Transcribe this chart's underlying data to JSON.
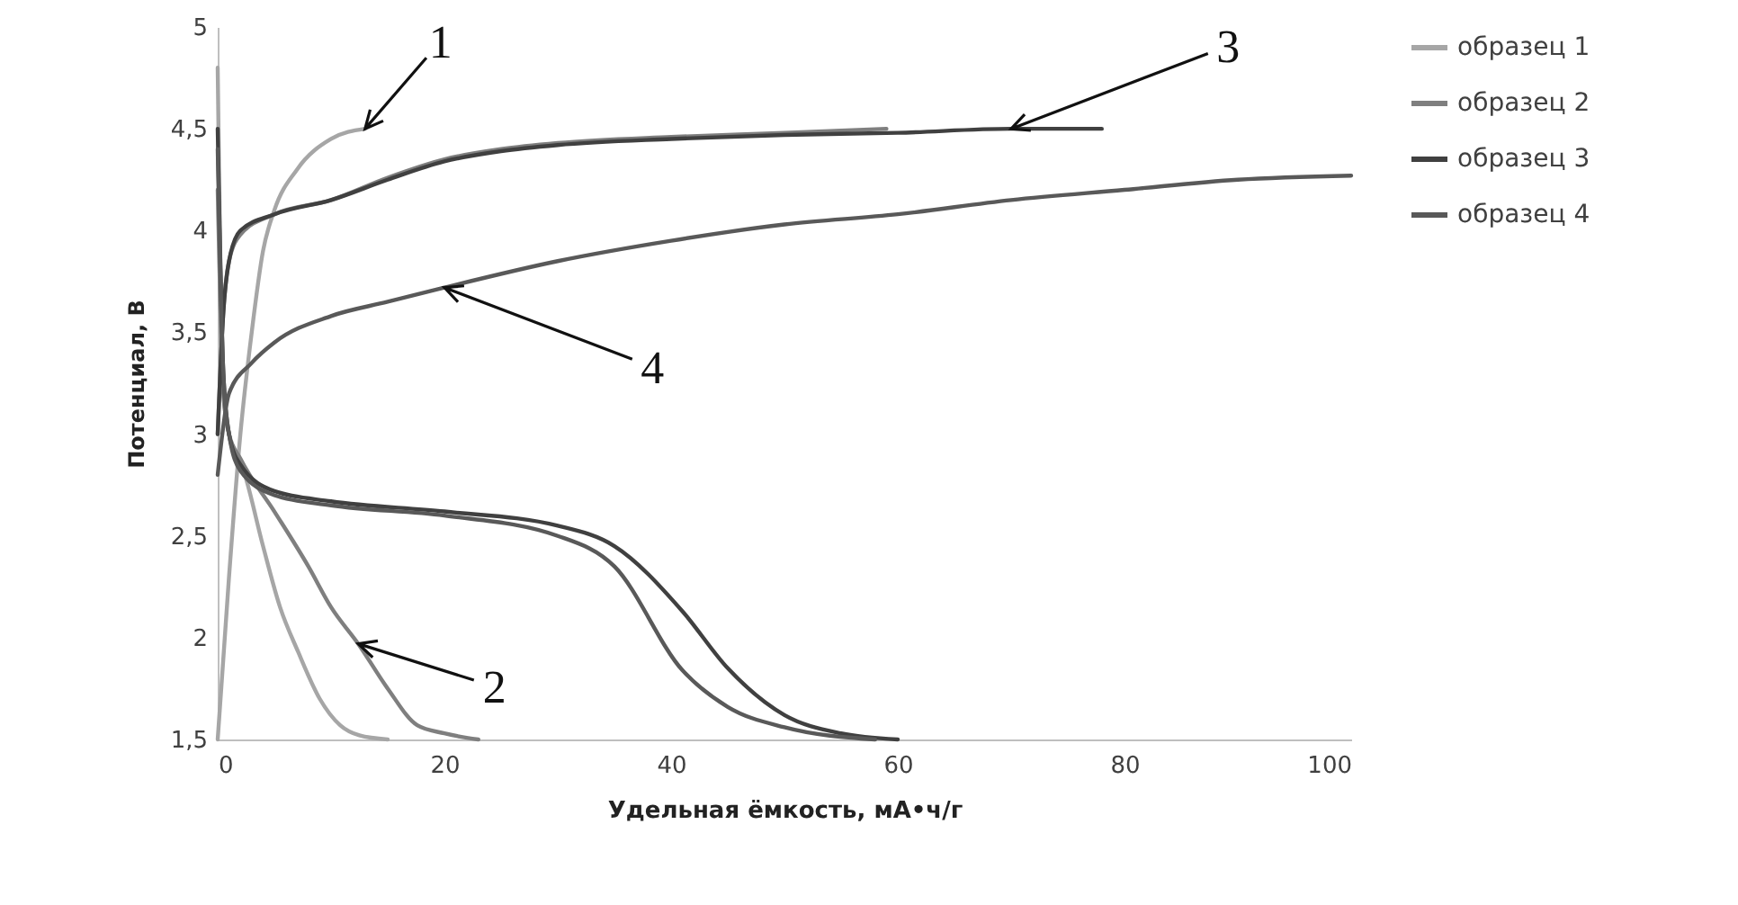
{
  "chart_data": {
    "type": "line",
    "xlabel": "Удельная ёмкость, мА•ч/г",
    "ylabel": "Потенциал, В",
    "xlim": [
      0,
      100
    ],
    "xticks": [
      0,
      20,
      40,
      60,
      80,
      100
    ],
    "ylim": [
      1.5,
      5
    ],
    "yticks": [
      {
        "value": 1.5,
        "label": "1,5"
      },
      {
        "value": 2,
        "label": "2"
      },
      {
        "value": 2.5,
        "label": "2,5"
      },
      {
        "value": 3,
        "label": "3"
      },
      {
        "value": 3.5,
        "label": "3,5"
      },
      {
        "value": 4,
        "label": "4"
      },
      {
        "value": 4.5,
        "label": "4,5"
      },
      {
        "value": 5,
        "label": "5"
      }
    ],
    "grid": false,
    "legend": "right",
    "line_style": "solid",
    "marker": "none",
    "series": [
      {
        "name": "образец 1",
        "color": "#a6a6a6",
        "x": [
          0,
          1,
          2,
          3,
          4,
          5,
          7,
          10,
          13,
          null,
          0,
          0.5,
          1,
          2.4,
          4,
          5.5,
          7.1,
          9,
          10.8,
          12.5,
          15
        ],
        "values": [
          1.5,
          2.3,
          3.0,
          3.5,
          3.9,
          4.1,
          4.3,
          4.45,
          4.5,
          null,
          4.8,
          3.2,
          3.0,
          2.8,
          2.45,
          2.15,
          1.93,
          1.7,
          1.57,
          1.52,
          1.5
        ]
      },
      {
        "name": "образец 2",
        "color": "#7f7f7f",
        "x": [
          0,
          0.5,
          1,
          2,
          5,
          10,
          15,
          20,
          25,
          30,
          40,
          50,
          59,
          null,
          0,
          0.5,
          1,
          2,
          5,
          8,
          10,
          12.4,
          15,
          17.6,
          20,
          23
        ],
        "values": [
          3.0,
          3.6,
          3.85,
          3.98,
          4.08,
          4.15,
          4.26,
          4.35,
          4.4,
          4.43,
          4.46,
          4.48,
          4.5,
          null,
          4.2,
          3.2,
          3.0,
          2.88,
          2.62,
          2.35,
          2.15,
          1.97,
          1.75,
          1.57,
          1.53,
          1.5
        ]
      },
      {
        "name": "образец 3",
        "color": "#404040",
        "x": [
          0,
          0.5,
          1,
          2,
          5,
          10,
          15,
          20,
          25,
          30,
          40,
          50,
          60,
          70,
          78,
          null,
          0,
          0.5,
          1,
          2,
          5,
          10,
          20,
          30,
          35,
          41,
          45,
          50,
          55,
          60
        ],
        "values": [
          3.0,
          3.6,
          3.85,
          4.0,
          4.08,
          4.15,
          4.25,
          4.34,
          4.39,
          4.42,
          4.45,
          4.47,
          4.48,
          4.5,
          4.5,
          null,
          4.5,
          3.3,
          3.0,
          2.85,
          2.72,
          2.67,
          2.62,
          2.55,
          2.45,
          2.13,
          1.85,
          1.62,
          1.53,
          1.5
        ]
      },
      {
        "name": "образец 4",
        "color": "#595959",
        "x": [
          0,
          1,
          3,
          5,
          10,
          15,
          20,
          30,
          40,
          50,
          60,
          70,
          80,
          90,
          100,
          null,
          0,
          0.5,
          1,
          2,
          5,
          10,
          20,
          30,
          35,
          41,
          45,
          50,
          58
        ],
        "values": [
          2.8,
          3.2,
          3.35,
          3.45,
          3.58,
          3.65,
          3.72,
          3.85,
          3.95,
          4.03,
          4.08,
          4.15,
          4.2,
          4.25,
          4.27,
          null,
          4.4,
          3.3,
          3.0,
          2.82,
          2.7,
          2.65,
          2.6,
          2.5,
          2.35,
          1.84,
          1.66,
          1.56,
          1.5
        ]
      }
    ],
    "annotations": [
      {
        "text": "1",
        "x": 13,
        "y": 4.5
      },
      {
        "text": "2",
        "x": 12.4,
        "y": 1.97
      },
      {
        "text": "3",
        "x": 70,
        "y": 4.5
      },
      {
        "text": "4",
        "x": 20,
        "y": 3.72
      }
    ]
  }
}
